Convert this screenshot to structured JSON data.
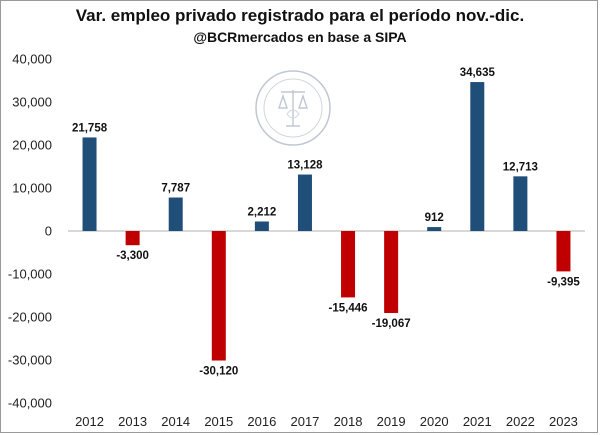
{
  "chart_data": {
    "type": "bar",
    "title": "Var. empleo privado registrado para el período nov.-dic.",
    "subtitle": "@BCRmercados en base a SIPA",
    "categories": [
      "2012",
      "2013",
      "2014",
      "2015",
      "2016",
      "2017",
      "2018",
      "2019",
      "2020",
      "2021",
      "2022",
      "2023"
    ],
    "values": [
      21758,
      -3300,
      7787,
      -30120,
      2212,
      13128,
      -15446,
      -19067,
      912,
      34635,
      12713,
      -9395
    ],
    "value_labels": [
      "21,758",
      "-3,300",
      "7,787",
      "-30,120",
      "2,212",
      "13,128",
      "-15,446",
      "-19,067",
      "912",
      "34,635",
      "12,713",
      "-9,395"
    ],
    "ylim": [
      -40000,
      40000
    ],
    "yticks": [
      40000,
      30000,
      20000,
      10000,
      0,
      -10000,
      -20000,
      -30000,
      -40000
    ],
    "ytick_labels": [
      "40,000",
      "30,000",
      "20,000",
      "10,000",
      "0",
      "-10,000",
      "-20,000",
      "-30,000",
      "-40,000"
    ],
    "xlabel": "",
    "ylabel": "",
    "grid": false,
    "legend": "none",
    "colors": {
      "positive": "#1f4e79",
      "negative": "#c00000",
      "axis": "#b0b0b0"
    },
    "watermark": "Bolsa de Comercio de Rosario seal"
  }
}
